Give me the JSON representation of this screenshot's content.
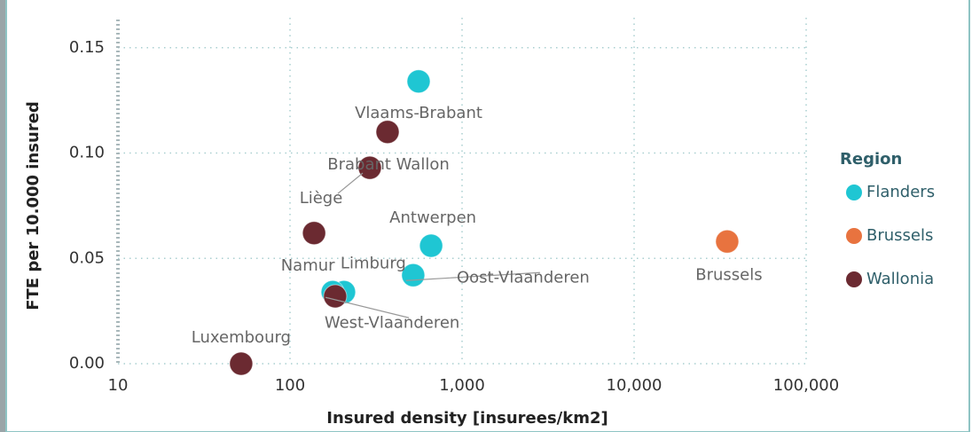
{
  "chart_data": {
    "type": "scatter",
    "xlabel": "Insured density [insurees/km2]",
    "ylabel": "FTE per 10.000 insured",
    "legend_title": "Region",
    "legend": "right",
    "log_x": true,
    "grid": true,
    "xlim": [
      10,
      100000
    ],
    "xticks": [
      10,
      100,
      {
        "value": 1000,
        "label": "1,000"
      },
      {
        "value": 10000,
        "label": "10,000"
      },
      {
        "value": 100000,
        "label": "100,000"
      }
    ],
    "ylim": [
      0,
      0.16
    ],
    "yticks": [
      {
        "value": 0,
        "label": "0.00"
      },
      {
        "value": 0.05,
        "label": "0.05"
      },
      {
        "value": 0.1,
        "label": "0.10"
      },
      0.15
    ],
    "series": [
      {
        "name": "Flanders",
        "color": "#1fc6d3",
        "x": [
          559,
          661,
          520,
          206,
          177
        ],
        "values": [
          0.134,
          0.056,
          0.042,
          0.034,
          0.034
        ],
        "labels": [
          "Vlaams-Brabant",
          "Antwerpen",
          "Oost-Vlaanderen",
          "Limburg",
          "West-Vlaanderen"
        ]
      },
      {
        "name": "Brussels",
        "color": "#e8733f",
        "x": [
          34750
        ],
        "values": [
          0.058
        ],
        "labels": [
          "Brussels"
        ]
      },
      {
        "name": "Wallonia",
        "color": "#6b2a31",
        "x": [
          369,
          291,
          138,
          52,
          183
        ],
        "values": [
          0.11,
          0.093,
          0.062,
          0.0,
          0.032
        ],
        "labels": [
          "Brabant Wallon",
          "Liège",
          "Namur",
          "Luxembourg",
          null
        ]
      }
    ]
  }
}
